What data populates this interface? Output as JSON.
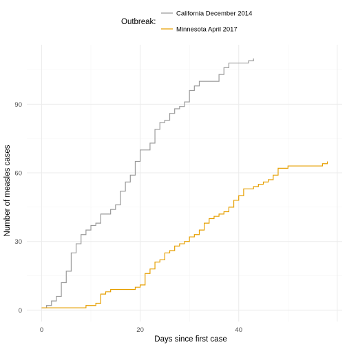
{
  "chart_data": {
    "type": "line",
    "step": true,
    "title": "",
    "xlabel": "Days since first case",
    "ylabel": "Number of measles cases",
    "xlim": [
      -3,
      61
    ],
    "ylim": [
      -5,
      116
    ],
    "x_ticks": [
      0,
      20,
      40
    ],
    "y_ticks": [
      0,
      30,
      60,
      90
    ],
    "grid": true,
    "legend": {
      "title": "Outbreak:",
      "position": "top"
    },
    "series": [
      {
        "name": "California December 2014",
        "color": "#999999",
        "points": [
          [
            0,
            1
          ],
          [
            1,
            2
          ],
          [
            2,
            4
          ],
          [
            3,
            6
          ],
          [
            4,
            12
          ],
          [
            5,
            17
          ],
          [
            6,
            25
          ],
          [
            7,
            29
          ],
          [
            8,
            33
          ],
          [
            9,
            35
          ],
          [
            10,
            37
          ],
          [
            11,
            38
          ],
          [
            12,
            42
          ],
          [
            14,
            44
          ],
          [
            15,
            46
          ],
          [
            16,
            52
          ],
          [
            17,
            56
          ],
          [
            18,
            59
          ],
          [
            19,
            65
          ],
          [
            20,
            70
          ],
          [
            22,
            73
          ],
          [
            23,
            79
          ],
          [
            24,
            82
          ],
          [
            25,
            83
          ],
          [
            26,
            86
          ],
          [
            27,
            88
          ],
          [
            28,
            89
          ],
          [
            29,
            91
          ],
          [
            30,
            96
          ],
          [
            31,
            98
          ],
          [
            32,
            100
          ],
          [
            36,
            103
          ],
          [
            37,
            106
          ],
          [
            38,
            108
          ],
          [
            42,
            109
          ],
          [
            43,
            110
          ]
        ]
      },
      {
        "name": "Minnesota April 2017",
        "color": "#E69F00",
        "points": [
          [
            0,
            1
          ],
          [
            9,
            2
          ],
          [
            11,
            3
          ],
          [
            12,
            7
          ],
          [
            13,
            8
          ],
          [
            14,
            9
          ],
          [
            19,
            10
          ],
          [
            20,
            11
          ],
          [
            21,
            16
          ],
          [
            22,
            18
          ],
          [
            23,
            21
          ],
          [
            24,
            22
          ],
          [
            25,
            25
          ],
          [
            26,
            26
          ],
          [
            27,
            28
          ],
          [
            28,
            29
          ],
          [
            29,
            30
          ],
          [
            30,
            32
          ],
          [
            31,
            33
          ],
          [
            32,
            35
          ],
          [
            33,
            38
          ],
          [
            34,
            40
          ],
          [
            35,
            41
          ],
          [
            36,
            42
          ],
          [
            37,
            43
          ],
          [
            38,
            45
          ],
          [
            39,
            48
          ],
          [
            40,
            50
          ],
          [
            41,
            53
          ],
          [
            43,
            54
          ],
          [
            44,
            55
          ],
          [
            45,
            56
          ],
          [
            46,
            57
          ],
          [
            47,
            59
          ],
          [
            48,
            62
          ],
          [
            50,
            63
          ],
          [
            57,
            64
          ],
          [
            58,
            65
          ]
        ]
      }
    ]
  }
}
